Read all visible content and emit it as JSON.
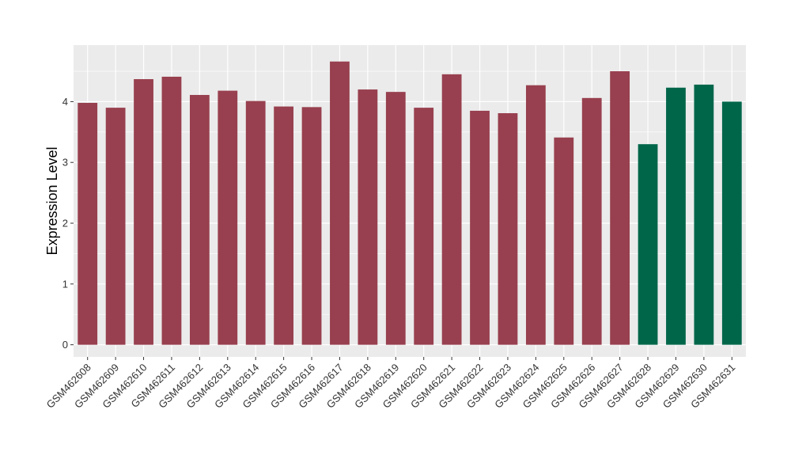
{
  "chart_data": {
    "type": "bar",
    "title": "",
    "xlabel": "",
    "ylabel": "Expression Level",
    "ylim": [
      -0.2,
      4.93
    ],
    "yticks": [
      0,
      1,
      2,
      3,
      4
    ],
    "grid": true,
    "categories": [
      "GSM462608",
      "GSM462609",
      "GSM462610",
      "GSM462611",
      "GSM462612",
      "GSM462613",
      "GSM462614",
      "GSM462615",
      "GSM462616",
      "GSM462617",
      "GSM462618",
      "GSM462619",
      "GSM462620",
      "GSM462621",
      "GSM462622",
      "GSM462623",
      "GSM462624",
      "GSM462625",
      "GSM462626",
      "GSM462627",
      "GSM462628",
      "GSM462629",
      "GSM462630",
      "GSM462631"
    ],
    "values": [
      3.98,
      3.9,
      4.37,
      4.41,
      4.11,
      4.18,
      4.01,
      3.92,
      3.91,
      4.66,
      4.2,
      4.16,
      3.9,
      4.45,
      3.85,
      3.81,
      4.27,
      3.41,
      4.06,
      4.5,
      3.3,
      4.23,
      4.28,
      4.0
    ],
    "groups": [
      "a",
      "a",
      "a",
      "a",
      "a",
      "a",
      "a",
      "a",
      "a",
      "a",
      "a",
      "a",
      "a",
      "a",
      "a",
      "a",
      "a",
      "a",
      "a",
      "a",
      "b",
      "b",
      "b",
      "b"
    ],
    "colors": {
      "a": "#98404F",
      "b": "#00664A"
    },
    "panel_background": "#EBEBEB",
    "grid_color": "#FFFFFF"
  }
}
